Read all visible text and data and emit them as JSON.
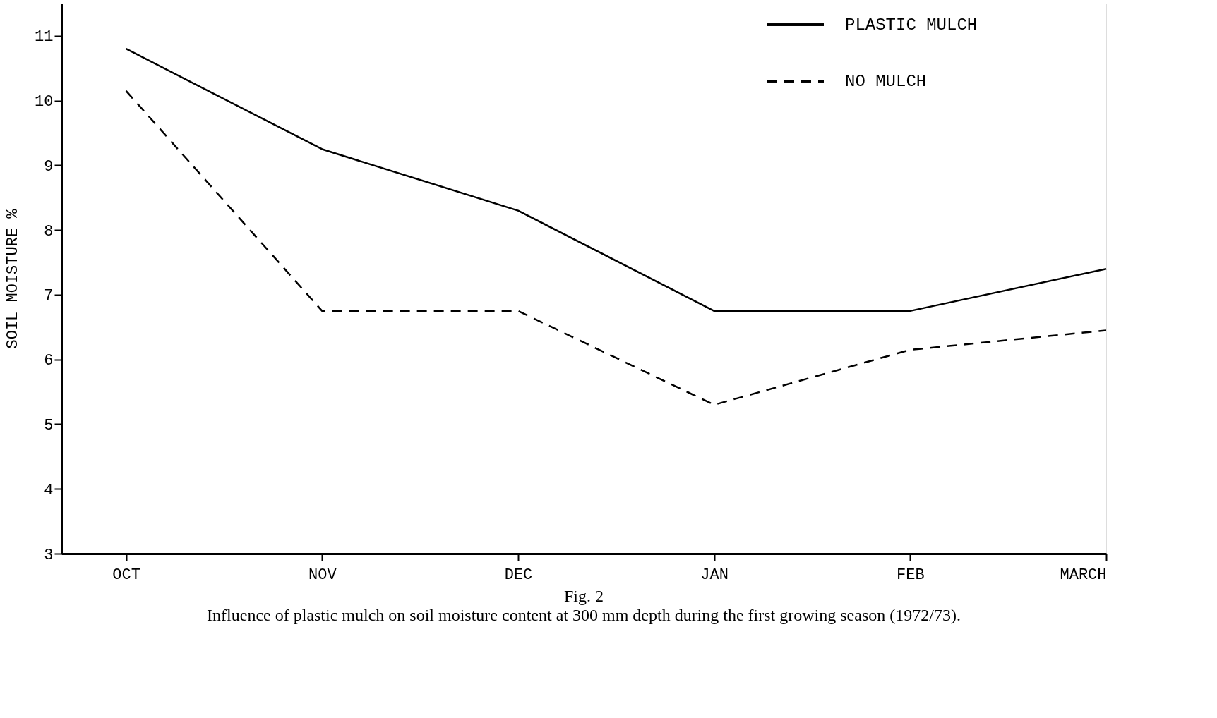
{
  "chart_data": {
    "type": "line",
    "ylabel": "SOIL MOISTURE %",
    "categories": [
      "OCT",
      "NOV",
      "DEC",
      "JAN",
      "FEB",
      "MARCH"
    ],
    "series": [
      {
        "name": "PLASTIC MULCH",
        "color": "#000000",
        "line_style": "solid",
        "values": [
          10.8,
          9.25,
          8.3,
          6.75,
          6.75,
          7.4
        ]
      },
      {
        "name": "NO MULCH",
        "color": "#000000",
        "line_style": "dashed",
        "values": [
          10.15,
          6.75,
          6.75,
          5.3,
          6.15,
          6.45
        ]
      }
    ],
    "ylim": [
      3,
      11.5
    ],
    "yticks": [
      3,
      4,
      5,
      6,
      7,
      8,
      9,
      10,
      11
    ],
    "grid": false,
    "legend": "top right",
    "marker": "none",
    "annotations": [
      "Fig. 2",
      "Influence of plastic mulch on soil moisture content at 300 mm depth during the first growing season (1972/73)."
    ]
  }
}
